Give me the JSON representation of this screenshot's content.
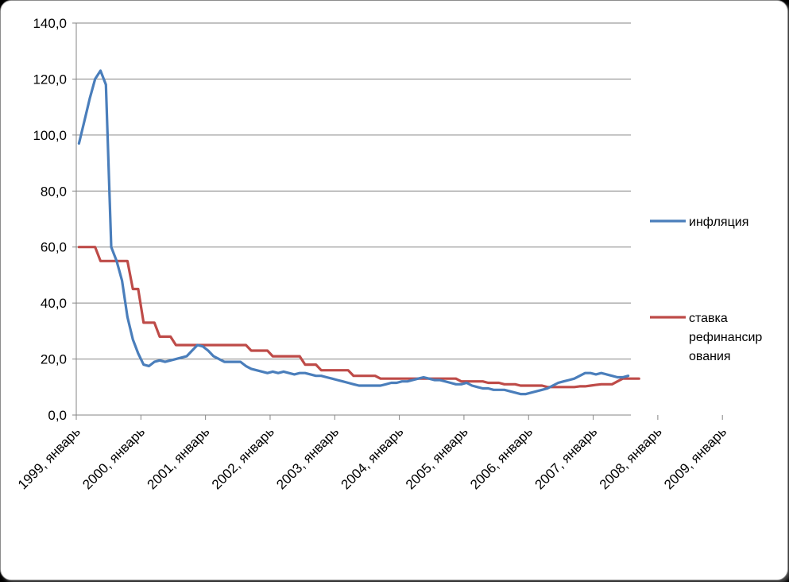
{
  "chart_data": {
    "type": "line",
    "title": "",
    "xlabel": "",
    "ylabel": "",
    "ylim": [
      0,
      140
    ],
    "yticks": [
      "0,0",
      "20,0",
      "40,0",
      "60,0",
      "80,0",
      "100,0",
      "120,0",
      "140,0"
    ],
    "xticks": [
      "1999, январь",
      "2000, январь",
      "2001, январь",
      "2002, январь",
      "2003, январь",
      "2004, январь",
      "2005, январь",
      "2006, январь",
      "2007, январь",
      "2008, январь",
      "2009, январь"
    ],
    "grid": "horizontal",
    "legend_position": "right",
    "series": [
      {
        "name": "инфляция",
        "color": "#4a7ebb",
        "values": [
          97,
          105,
          113,
          120,
          123,
          118,
          60,
          55,
          48,
          35,
          27,
          22,
          18,
          17.5,
          19,
          19.5,
          19,
          19.5,
          20,
          20.5,
          21,
          23,
          25,
          24.5,
          23,
          21,
          20,
          19,
          19,
          19,
          19,
          17.5,
          16.5,
          16,
          15.5,
          15,
          15.5,
          15,
          15.5,
          15,
          14.5,
          15,
          15,
          14.5,
          14,
          14,
          13.5,
          13,
          12.5,
          12,
          11.5,
          11,
          10.5,
          10.5,
          10.5,
          10.5,
          10.5,
          11,
          11.5,
          11.5,
          12,
          12,
          12.5,
          13,
          13.5,
          13,
          12.5,
          12.5,
          12,
          11.5,
          11,
          11,
          11.5,
          10.5,
          10,
          9.5,
          9.5,
          9,
          9,
          9,
          8.5,
          8,
          7.5,
          7.5,
          8,
          8.5,
          9,
          9.5,
          10.5,
          11.5,
          12,
          12.5,
          13,
          14,
          15,
          15,
          14.5,
          15,
          14.5,
          14,
          13.5,
          13.5,
          14
        ]
      },
      {
        "name": "ставка рефинансирования",
        "color": "#be4b48",
        "values": [
          60,
          60,
          60,
          60,
          55,
          55,
          55,
          55,
          55,
          55,
          45,
          45,
          33,
          33,
          33,
          28,
          28,
          28,
          25,
          25,
          25,
          25,
          25,
          25,
          25,
          25,
          25,
          25,
          25,
          25,
          25,
          25,
          23,
          23,
          23,
          23,
          21,
          21,
          21,
          21,
          21,
          21,
          18,
          18,
          18,
          16,
          16,
          16,
          16,
          16,
          16,
          14,
          14,
          14,
          14,
          14,
          13,
          13,
          13,
          13,
          13,
          13,
          13,
          13,
          13,
          13,
          13,
          13,
          13,
          13,
          13,
          12,
          12,
          12,
          12,
          12,
          11.5,
          11.5,
          11.5,
          11,
          11,
          11,
          10.5,
          10.5,
          10.5,
          10.5,
          10.5,
          10,
          10,
          10,
          10,
          10,
          10,
          10.25,
          10.25,
          10.5,
          10.75,
          11,
          11,
          11,
          12,
          13,
          13,
          13,
          13
        ]
      }
    ],
    "legend_entries": [
      {
        "lines": [
          "инфляция"
        ]
      },
      {
        "lines": [
          "ставка",
          "рефинансир",
          "ования"
        ]
      }
    ]
  }
}
